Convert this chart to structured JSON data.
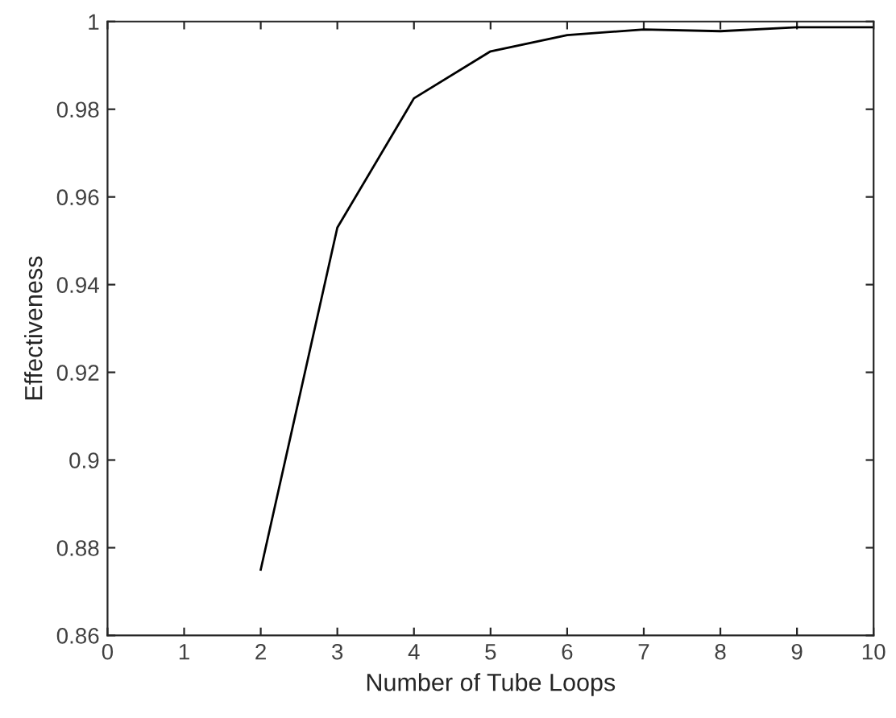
{
  "chart_data": {
    "type": "line",
    "xlabel": "Number of Tube Loops",
    "ylabel": "Effectiveness",
    "x": [
      2,
      3,
      4,
      5,
      6,
      7,
      8,
      9,
      10
    ],
    "series": [
      {
        "color": "#000000",
        "values": [
          0.875,
          0.953,
          0.9825,
          0.9932,
          0.9969,
          0.9982,
          0.9978,
          0.9987,
          0.9987
        ]
      }
    ],
    "xlim": [
      0,
      10
    ],
    "xticks": [
      0,
      1,
      2,
      3,
      4,
      5,
      6,
      7,
      8,
      9,
      10
    ],
    "ylim": [
      0.86,
      1
    ],
    "yticks": [
      0.86,
      0.88,
      0.9,
      0.92,
      0.94,
      0.96,
      0.98,
      1
    ],
    "grid": false,
    "legend": false,
    "marker": "none",
    "line_style": "solid"
  }
}
